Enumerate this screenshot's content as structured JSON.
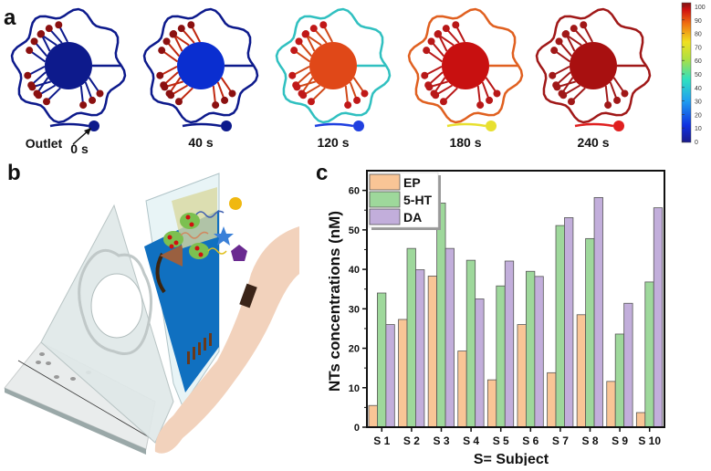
{
  "panel_a": {
    "label": "a",
    "outlet_label": "Outlet",
    "frames": [
      {
        "time": "0 s",
        "frame_colors": {
          "ring": "#0d1a8c",
          "center": "#0d1a8c",
          "branch": "#0d1a8c",
          "dot": "#8b1010",
          "outlet": "#0d1a8c"
        }
      },
      {
        "time": "40 s",
        "frame_colors": {
          "ring": "#0d1a8c",
          "center": "#0a2ed0",
          "branch": "#c02810",
          "dot": "#8b1010",
          "outlet": "#0d1a8c"
        }
      },
      {
        "time": "120 s",
        "frame_colors": {
          "ring": "#30c0c0",
          "center": "#e04818",
          "branch": "#d04818",
          "dot": "#c01818",
          "outlet": "#2040e0"
        }
      },
      {
        "time": "180 s",
        "frame_colors": {
          "ring": "#e06020",
          "center": "#c81010",
          "branch": "#b81818",
          "dot": "#b81818",
          "outlet": "#e8e030"
        }
      },
      {
        "time": "240 s",
        "frame_colors": {
          "ring": "#a01818",
          "center": "#a81010",
          "branch": "#a01818",
          "dot": "#a01818",
          "outlet": "#e02020"
        }
      }
    ],
    "colorbar": {
      "ticks": [
        "100",
        "90",
        "80",
        "70",
        "60",
        "50",
        "40",
        "30",
        "20",
        "10",
        "0"
      ]
    }
  },
  "panel_b": {
    "label": "b"
  },
  "panel_c": {
    "label": "c"
  },
  "chart_data": {
    "type": "bar",
    "title": "",
    "xlabel": "S= Subject",
    "ylabel": "NTs concentrations (nM)",
    "ylim": [
      0,
      65
    ],
    "yticks": [
      0,
      10,
      20,
      30,
      40,
      50,
      60
    ],
    "categories": [
      "S 1",
      "S 2",
      "S 3",
      "S 4",
      "S 5",
      "S 6",
      "S 7",
      "S 8",
      "S 9",
      "S 10"
    ],
    "legend_position": "top-left",
    "series": [
      {
        "name": "EP",
        "color": "#f9c596",
        "values": [
          5.5,
          27.3,
          38.3,
          19.3,
          12.0,
          26.0,
          13.8,
          28.5,
          11.6,
          3.7
        ]
      },
      {
        "name": " 5-HT",
        "color": "#9ed89b",
        "values": [
          34.0,
          45.3,
          56.8,
          42.3,
          35.8,
          39.5,
          51.1,
          47.8,
          23.6,
          36.8
        ]
      },
      {
        "name": "DA",
        "color": "#c2aedb",
        "values": [
          26.0,
          39.9,
          45.3,
          32.5,
          42.1,
          38.2,
          53.1,
          58.2,
          31.4,
          55.6
        ]
      }
    ]
  }
}
